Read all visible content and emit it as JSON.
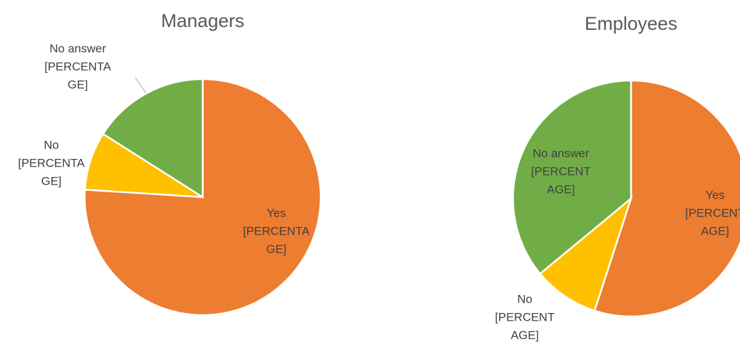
{
  "chart_data": [
    {
      "type": "pie",
      "title": "Managers",
      "categories": [
        "Yes",
        "No",
        "No answer"
      ],
      "values": [
        76,
        8,
        16
      ],
      "value_labels": [
        [
          "[PERCENTA",
          "GE]"
        ],
        [
          "[PERCENTA",
          "GE]"
        ],
        [
          "[PERCENTA",
          "GE]"
        ]
      ],
      "colors": [
        "#ED7D31",
        "#FFC000",
        "#70AD47"
      ]
    },
    {
      "type": "pie",
      "title": "Employees",
      "categories": [
        "Yes",
        "No",
        "No answer"
      ],
      "values": [
        55,
        9,
        36
      ],
      "value_labels": [
        [
          "[PERCENT",
          "AGE]"
        ],
        [
          "[PERCENT",
          "AGE]"
        ],
        [
          "[PERCENT",
          "AGE]"
        ]
      ],
      "colors": [
        "#ED7D31",
        "#FFC000",
        "#70AD47"
      ]
    }
  ]
}
